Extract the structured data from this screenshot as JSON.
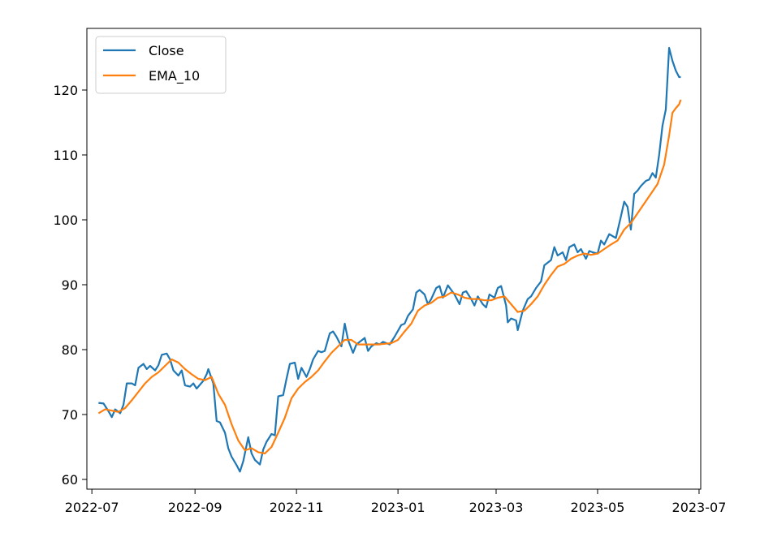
{
  "chart_data": {
    "type": "line",
    "title": "",
    "xlabel": "",
    "ylabel": "",
    "x_axis_type": "date",
    "xlim": [
      "2022-06-28",
      "2023-07-02"
    ],
    "ylim": [
      58.5,
      129.5
    ],
    "x_ticks": [
      {
        "value": "2022-07-01",
        "label": "2022-07"
      },
      {
        "value": "2022-09-01",
        "label": "2022-09"
      },
      {
        "value": "2022-11-01",
        "label": "2022-11"
      },
      {
        "value": "2023-01-01",
        "label": "2023-01"
      },
      {
        "value": "2023-03-01",
        "label": "2023-03"
      },
      {
        "value": "2023-05-01",
        "label": "2023-05"
      },
      {
        "value": "2023-07-01",
        "label": "2023-07"
      }
    ],
    "y_ticks": [
      60,
      70,
      80,
      90,
      100,
      110,
      120
    ],
    "grid": false,
    "legend": {
      "position": "top-left"
    },
    "series": [
      {
        "name": "Close",
        "color": "#1f77b4",
        "points": [
          [
            "2022-07-05",
            71.8
          ],
          [
            "2022-07-08",
            71.7
          ],
          [
            "2022-07-11",
            70.5
          ],
          [
            "2022-07-13",
            69.6
          ],
          [
            "2022-07-15",
            70.8
          ],
          [
            "2022-07-18",
            70.2
          ],
          [
            "2022-07-20",
            71.5
          ],
          [
            "2022-07-22",
            74.8
          ],
          [
            "2022-07-25",
            74.8
          ],
          [
            "2022-07-27",
            74.5
          ],
          [
            "2022-07-29",
            77.2
          ],
          [
            "2022-08-01",
            77.8
          ],
          [
            "2022-08-03",
            77.0
          ],
          [
            "2022-08-05",
            77.5
          ],
          [
            "2022-08-08",
            76.8
          ],
          [
            "2022-08-10",
            77.6
          ],
          [
            "2022-08-12",
            79.2
          ],
          [
            "2022-08-15",
            79.4
          ],
          [
            "2022-08-17",
            78.5
          ],
          [
            "2022-08-19",
            76.8
          ],
          [
            "2022-08-22",
            76.0
          ],
          [
            "2022-08-24",
            76.8
          ],
          [
            "2022-08-26",
            74.5
          ],
          [
            "2022-08-29",
            74.3
          ],
          [
            "2022-08-31",
            74.8
          ],
          [
            "2022-09-02",
            74.0
          ],
          [
            "2022-09-06",
            75.2
          ],
          [
            "2022-09-08",
            76.2
          ],
          [
            "2022-09-09",
            77.0
          ],
          [
            "2022-09-12",
            74.8
          ],
          [
            "2022-09-14",
            69.0
          ],
          [
            "2022-09-16",
            68.8
          ],
          [
            "2022-09-19",
            67.2
          ],
          [
            "2022-09-21",
            64.8
          ],
          [
            "2022-09-23",
            63.5
          ],
          [
            "2022-09-26",
            62.2
          ],
          [
            "2022-09-28",
            61.2
          ],
          [
            "2022-09-30",
            62.8
          ],
          [
            "2022-10-03",
            66.5
          ],
          [
            "2022-10-05",
            64.0
          ],
          [
            "2022-10-07",
            63.0
          ],
          [
            "2022-10-10",
            62.3
          ],
          [
            "2022-10-12",
            64.6
          ],
          [
            "2022-10-14",
            65.8
          ],
          [
            "2022-10-17",
            67.0
          ],
          [
            "2022-10-19",
            66.8
          ],
          [
            "2022-10-21",
            72.8
          ],
          [
            "2022-10-24",
            73.0
          ],
          [
            "2022-10-26",
            75.5
          ],
          [
            "2022-10-28",
            77.8
          ],
          [
            "2022-10-31",
            78.0
          ],
          [
            "2022-11-02",
            75.5
          ],
          [
            "2022-11-04",
            77.2
          ],
          [
            "2022-11-07",
            75.8
          ],
          [
            "2022-11-09",
            77.0
          ],
          [
            "2022-11-11",
            78.5
          ],
          [
            "2022-11-14",
            79.8
          ],
          [
            "2022-11-16",
            79.6
          ],
          [
            "2022-11-18",
            79.8
          ],
          [
            "2022-11-21",
            82.5
          ],
          [
            "2022-11-23",
            82.8
          ],
          [
            "2022-11-25",
            82.0
          ],
          [
            "2022-11-28",
            80.5
          ],
          [
            "2022-11-30",
            84.0
          ],
          [
            "2022-12-02",
            81.5
          ],
          [
            "2022-12-05",
            79.5
          ],
          [
            "2022-12-07",
            80.8
          ],
          [
            "2022-12-09",
            81.2
          ],
          [
            "2022-12-12",
            81.8
          ],
          [
            "2022-12-14",
            79.8
          ],
          [
            "2022-12-16",
            80.5
          ],
          [
            "2022-12-19",
            81.0
          ],
          [
            "2022-12-21",
            80.8
          ],
          [
            "2022-12-23",
            81.2
          ],
          [
            "2022-12-27",
            80.8
          ],
          [
            "2022-12-30",
            82.0
          ],
          [
            "2023-01-03",
            83.8
          ],
          [
            "2023-01-05",
            84.0
          ],
          [
            "2023-01-07",
            85.2
          ],
          [
            "2023-01-10",
            86.2
          ],
          [
            "2023-01-12",
            88.8
          ],
          [
            "2023-01-14",
            89.2
          ],
          [
            "2023-01-17",
            88.5
          ],
          [
            "2023-01-19",
            87.0
          ],
          [
            "2023-01-21",
            87.8
          ],
          [
            "2023-01-24",
            89.5
          ],
          [
            "2023-01-26",
            89.8
          ],
          [
            "2023-01-28",
            88.0
          ],
          [
            "2023-01-31",
            89.9
          ],
          [
            "2023-02-02",
            89.2
          ],
          [
            "2023-02-04",
            88.5
          ],
          [
            "2023-02-07",
            87.0
          ],
          [
            "2023-02-09",
            88.8
          ],
          [
            "2023-02-11",
            89.0
          ],
          [
            "2023-02-14",
            87.8
          ],
          [
            "2023-02-16",
            86.8
          ],
          [
            "2023-02-18",
            88.2
          ],
          [
            "2023-02-21",
            87.0
          ],
          [
            "2023-02-23",
            86.5
          ],
          [
            "2023-02-25",
            88.5
          ],
          [
            "2023-02-28",
            88.0
          ],
          [
            "2023-03-02",
            89.5
          ],
          [
            "2023-03-04",
            89.8
          ],
          [
            "2023-03-07",
            86.8
          ],
          [
            "2023-03-08",
            84.2
          ],
          [
            "2023-03-10",
            84.8
          ],
          [
            "2023-03-13",
            84.5
          ],
          [
            "2023-03-14",
            83.0
          ],
          [
            "2023-03-17",
            86.0
          ],
          [
            "2023-03-20",
            87.8
          ],
          [
            "2023-03-22",
            88.2
          ],
          [
            "2023-03-25",
            89.5
          ],
          [
            "2023-03-28",
            90.5
          ],
          [
            "2023-03-30",
            93.0
          ],
          [
            "2023-04-03",
            93.8
          ],
          [
            "2023-04-05",
            95.8
          ],
          [
            "2023-04-07",
            94.5
          ],
          [
            "2023-04-10",
            95.0
          ],
          [
            "2023-04-12",
            93.8
          ],
          [
            "2023-04-14",
            95.8
          ],
          [
            "2023-04-17",
            96.2
          ],
          [
            "2023-04-19",
            95.0
          ],
          [
            "2023-04-21",
            95.5
          ],
          [
            "2023-04-24",
            94.0
          ],
          [
            "2023-04-26",
            95.2
          ],
          [
            "2023-04-28",
            95.0
          ],
          [
            "2023-05-01",
            94.8
          ],
          [
            "2023-05-03",
            96.8
          ],
          [
            "2023-05-05",
            96.2
          ],
          [
            "2023-05-08",
            97.8
          ],
          [
            "2023-05-10",
            97.5
          ],
          [
            "2023-05-12",
            97.2
          ],
          [
            "2023-05-15",
            100.5
          ],
          [
            "2023-05-17",
            102.8
          ],
          [
            "2023-05-19",
            102.0
          ],
          [
            "2023-05-21",
            98.5
          ],
          [
            "2023-05-23",
            104.0
          ],
          [
            "2023-05-25",
            104.5
          ],
          [
            "2023-05-27",
            105.2
          ],
          [
            "2023-05-30",
            106.0
          ],
          [
            "2023-06-01",
            106.2
          ],
          [
            "2023-06-03",
            107.2
          ],
          [
            "2023-06-05",
            106.5
          ],
          [
            "2023-06-07",
            110.0
          ],
          [
            "2023-06-09",
            114.5
          ],
          [
            "2023-06-11",
            117.0
          ],
          [
            "2023-06-13",
            126.5
          ],
          [
            "2023-06-15",
            124.5
          ],
          [
            "2023-06-17",
            123.0
          ],
          [
            "2023-06-19",
            122.0
          ],
          [
            "2023-06-20",
            122.0
          ]
        ]
      },
      {
        "name": "EMA_10",
        "color": "#ff7f0e",
        "points": [
          [
            "2022-07-05",
            70.2
          ],
          [
            "2022-07-09",
            70.8
          ],
          [
            "2022-07-13",
            70.6
          ],
          [
            "2022-07-17",
            70.4
          ],
          [
            "2022-07-21",
            71.0
          ],
          [
            "2022-07-25",
            72.2
          ],
          [
            "2022-07-29",
            73.5
          ],
          [
            "2022-08-02",
            74.8
          ],
          [
            "2022-08-06",
            75.8
          ],
          [
            "2022-08-10",
            76.5
          ],
          [
            "2022-08-14",
            77.5
          ],
          [
            "2022-08-18",
            78.5
          ],
          [
            "2022-08-22",
            78.0
          ],
          [
            "2022-08-26",
            77.0
          ],
          [
            "2022-08-30",
            76.2
          ],
          [
            "2022-09-03",
            75.5
          ],
          [
            "2022-09-07",
            75.3
          ],
          [
            "2022-09-11",
            75.8
          ],
          [
            "2022-09-15",
            73.2
          ],
          [
            "2022-09-19",
            71.5
          ],
          [
            "2022-09-23",
            68.5
          ],
          [
            "2022-09-27",
            66.0
          ],
          [
            "2022-10-01",
            64.5
          ],
          [
            "2022-10-05",
            64.8
          ],
          [
            "2022-10-09",
            64.2
          ],
          [
            "2022-10-13",
            64.0
          ],
          [
            "2022-10-17",
            65.0
          ],
          [
            "2022-10-21",
            67.2
          ],
          [
            "2022-10-25",
            69.5
          ],
          [
            "2022-10-29",
            72.5
          ],
          [
            "2022-11-02",
            74.0
          ],
          [
            "2022-11-06",
            75.0
          ],
          [
            "2022-11-10",
            75.8
          ],
          [
            "2022-11-14",
            76.8
          ],
          [
            "2022-11-18",
            78.2
          ],
          [
            "2022-11-22",
            79.5
          ],
          [
            "2022-11-26",
            80.5
          ],
          [
            "2022-11-30",
            81.5
          ],
          [
            "2022-12-04",
            81.5
          ],
          [
            "2022-12-08",
            80.8
          ],
          [
            "2022-12-12",
            80.8
          ],
          [
            "2022-12-16",
            80.8
          ],
          [
            "2022-12-20",
            80.8
          ],
          [
            "2022-12-24",
            80.9
          ],
          [
            "2022-12-28",
            81.0
          ],
          [
            "2023-01-01",
            81.5
          ],
          [
            "2023-01-05",
            82.8
          ],
          [
            "2023-01-09",
            84.0
          ],
          [
            "2023-01-13",
            86.0
          ],
          [
            "2023-01-17",
            86.8
          ],
          [
            "2023-01-21",
            87.2
          ],
          [
            "2023-01-25",
            88.0
          ],
          [
            "2023-01-29",
            88.2
          ],
          [
            "2023-02-02",
            88.8
          ],
          [
            "2023-02-06",
            88.5
          ],
          [
            "2023-02-10",
            88.0
          ],
          [
            "2023-02-14",
            87.8
          ],
          [
            "2023-02-18",
            87.8
          ],
          [
            "2023-02-22",
            87.6
          ],
          [
            "2023-02-26",
            87.6
          ],
          [
            "2023-03-02",
            88.0
          ],
          [
            "2023-03-06",
            88.2
          ],
          [
            "2023-03-10",
            87.0
          ],
          [
            "2023-03-14",
            85.8
          ],
          [
            "2023-03-18",
            86.0
          ],
          [
            "2023-03-22",
            87.0
          ],
          [
            "2023-03-26",
            88.2
          ],
          [
            "2023-03-30",
            90.0
          ],
          [
            "2023-04-03",
            91.5
          ],
          [
            "2023-04-07",
            92.8
          ],
          [
            "2023-04-11",
            93.2
          ],
          [
            "2023-04-15",
            94.0
          ],
          [
            "2023-04-19",
            94.5
          ],
          [
            "2023-04-23",
            94.8
          ],
          [
            "2023-04-27",
            94.6
          ],
          [
            "2023-05-01",
            94.8
          ],
          [
            "2023-05-05",
            95.5
          ],
          [
            "2023-05-09",
            96.2
          ],
          [
            "2023-05-13",
            96.8
          ],
          [
            "2023-05-17",
            98.5
          ],
          [
            "2023-05-21",
            99.5
          ],
          [
            "2023-05-25",
            101.0
          ],
          [
            "2023-05-29",
            102.5
          ],
          [
            "2023-06-02",
            104.0
          ],
          [
            "2023-06-06",
            105.5
          ],
          [
            "2023-06-10",
            108.5
          ],
          [
            "2023-06-13",
            113.0
          ],
          [
            "2023-06-15",
            116.5
          ],
          [
            "2023-06-17",
            117.2
          ],
          [
            "2023-06-19",
            117.8
          ],
          [
            "2023-06-20",
            118.5
          ]
        ]
      }
    ]
  }
}
